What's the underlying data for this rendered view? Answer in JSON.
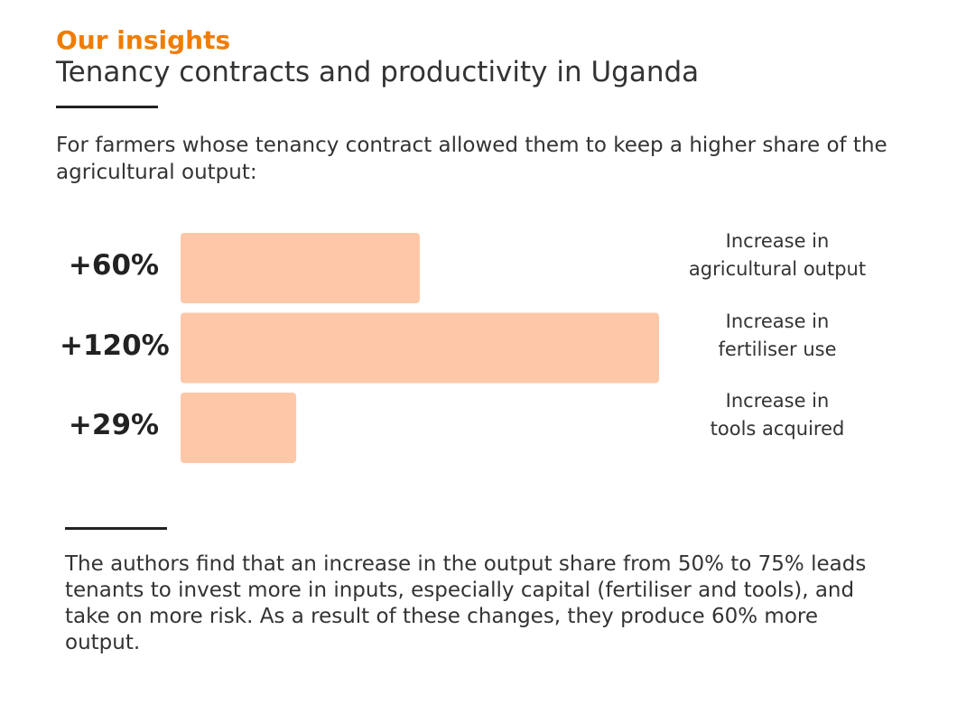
{
  "chart_data": {
    "type": "bar",
    "orientation": "horizontal",
    "header": "Our insights",
    "title": "Tenancy contracts and productivity in Uganda",
    "subtitle": "For farmers whose tenancy contract allowed them to keep a higher share of the agricultural output:",
    "categories": [
      "Increase in\nagricultural output",
      "Increase in\nfertiliser use",
      "Increase in\ntools acquired"
    ],
    "values": [
      60,
      120,
      29
    ],
    "value_labels": [
      "+60%",
      "+120%",
      "+29%"
    ],
    "color": "#fec8a8",
    "note": "The authors find that an increase in the output share from 50% to 75% leads tenants to invest more in inputs, especially capital (fertiliser and tools), and take on more risk. As a result of these changes, they produce 60% more output."
  }
}
